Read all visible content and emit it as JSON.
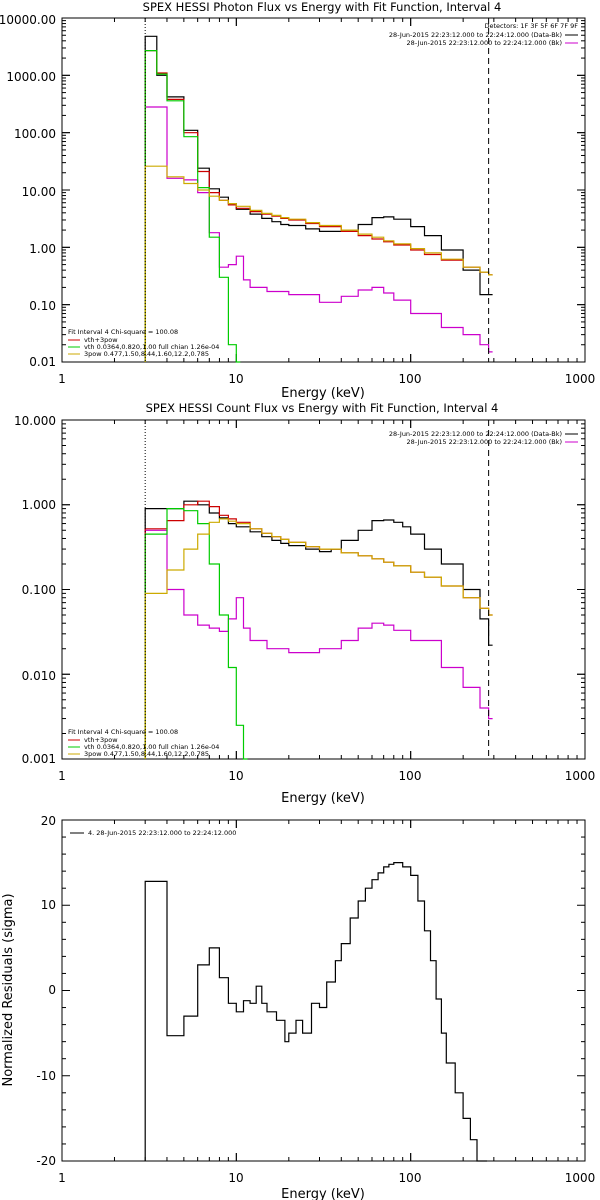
{
  "chart_data": [
    {
      "type": "line",
      "title": "SPEX HESSI Photon Flux vs Energy with Fit Function, Interval 4",
      "xlabel": "Energy (keV)",
      "ylabel": "",
      "xscale": "log",
      "yscale": "log",
      "xlim": [
        1,
        1000
      ],
      "ylim": [
        0.01,
        10000
      ],
      "xticks": [
        "1",
        "10",
        "100",
        "1000"
      ],
      "yticks": [
        "0.01",
        "0.10",
        "1.00",
        "10.00",
        "100.00",
        "1000.00",
        "10000.00"
      ],
      "legend_top": [
        "Detectors: 1F 3F 5F 6F 7F 9F",
        "28-Jun-2015 22:23:12.000 to 22:24:12.000 (Data-Bk)",
        "28-Jun-2015 22:23:12.000 to 22:24:12.000 (Bk)"
      ],
      "legend_bottom_title": "Fit Interval 4   Chi-square = 100.08",
      "legend_bottom": [
        "vth+3pow",
        "vth 0.0364,0.820,1.00  full chian 1.26e-04",
        "3pow 0.477,1.50,8.44,1.60,12.2,0.785"
      ],
      "vlines": [
        3,
        280
      ],
      "series": [
        {
          "name": "28-Jun-2015 22:23:12.000 to 22:24:12.000 (Data-Bk)",
          "color": "#000000",
          "x": [
            3,
            3.5,
            4,
            5,
            6,
            7,
            8,
            9,
            10,
            12,
            14,
            16,
            18,
            20,
            25,
            30,
            40,
            50,
            60,
            70,
            80,
            100,
            120,
            150,
            200,
            250,
            280
          ],
          "y": [
            4800,
            1000,
            420,
            110,
            24,
            10.5,
            7.5,
            5.8,
            4.6,
            3.8,
            3.2,
            2.8,
            2.5,
            2.4,
            2.1,
            1.9,
            1.9,
            2.5,
            3.3,
            3.4,
            3.1,
            2.3,
            1.6,
            0.9,
            0.4,
            0.15,
            0.15
          ]
        },
        {
          "name": "28-Jun-2015 22:23:12.000 to 22:24:12.000 (Bk)",
          "color": "#cc00cc",
          "x": [
            3,
            4,
            5,
            6,
            7,
            8,
            9,
            10,
            11,
            12,
            15,
            20,
            30,
            40,
            50,
            60,
            70,
            80,
            100,
            150,
            200,
            250,
            280
          ],
          "y": [
            280,
            16,
            15,
            9,
            1.8,
            0.45,
            0.5,
            0.7,
            0.27,
            0.2,
            0.17,
            0.15,
            0.11,
            0.14,
            0.18,
            0.2,
            0.16,
            0.12,
            0.07,
            0.04,
            0.03,
            0.02,
            0.015
          ]
        },
        {
          "name": "vth+3pow",
          "color": "#cc0000",
          "x": [
            3,
            3.5,
            4,
            5,
            6,
            7,
            8,
            9,
            10,
            12,
            14,
            16,
            18,
            20,
            25,
            30,
            40,
            50,
            60,
            70,
            80,
            100,
            120,
            150,
            200,
            250,
            280
          ],
          "y": [
            2700,
            1100,
            380,
            100,
            21,
            9,
            6.6,
            5.5,
            4.8,
            4.2,
            3.8,
            3.5,
            3.2,
            3.0,
            2.6,
            2.3,
            1.9,
            1.6,
            1.4,
            1.25,
            1.1,
            0.9,
            0.75,
            0.6,
            0.45,
            0.37,
            0.33
          ]
        },
        {
          "name": "vth 0.0364,0.820,1.00  full chian 1.26e-04",
          "color": "#00cc00",
          "x": [
            3,
            3.5,
            4,
            5,
            6,
            7,
            8,
            9,
            10
          ],
          "y": [
            2700,
            1050,
            360,
            85,
            11,
            1.5,
            0.3,
            0.02,
            0.01
          ]
        },
        {
          "name": "3pow 0.477,1.50,8.44,1.60,12.2,0.785",
          "color": "#ccaa00",
          "x": [
            3,
            4,
            5,
            6,
            7,
            8,
            9,
            10,
            12,
            14,
            16,
            18,
            20,
            25,
            30,
            40,
            50,
            60,
            70,
            80,
            100,
            120,
            150,
            200,
            250,
            280
          ],
          "y": [
            26,
            17,
            13,
            10,
            7.8,
            6.6,
            5.8,
            5.2,
            4.4,
            3.9,
            3.6,
            3.3,
            3.1,
            2.7,
            2.4,
            2.0,
            1.7,
            1.5,
            1.3,
            1.15,
            0.95,
            0.8,
            0.62,
            0.45,
            0.37,
            0.33
          ]
        }
      ]
    },
    {
      "type": "line",
      "title": "SPEX HESSI Count Flux vs Energy with Fit Function, Interval 4",
      "xlabel": "Energy (keV)",
      "ylabel": "",
      "xscale": "log",
      "yscale": "log",
      "xlim": [
        1,
        1000
      ],
      "ylim": [
        0.001,
        10
      ],
      "xticks": [
        "1",
        "10",
        "100",
        "1000"
      ],
      "yticks": [
        "0.001",
        "0.010",
        "0.100",
        "1.000",
        "10.000"
      ],
      "legend_top": [
        "28-Jun-2015 22:23:12.000 to 22:24:12.000 (Data-Bk)",
        "28-Jun-2015 22:23:12.000 to 22:24:12.000 (Bk)"
      ],
      "legend_bottom_title": "Fit Interval 4   Chi-square = 100.08",
      "legend_bottom": [
        "vth+3pow",
        "vth 0.0364,0.820,1.00  full chian 1.26e-04",
        "3pow 0.477,1.50,8.44,1.60,12.2,0.785"
      ],
      "vlines": [
        3,
        280
      ],
      "series": [
        {
          "name": "28-Jun-2015 22:23:12.000 to 22:24:12.000 (Data-Bk)",
          "color": "#000000",
          "x": [
            3,
            4,
            5,
            6,
            7,
            8,
            9,
            10,
            12,
            14,
            16,
            18,
            20,
            25,
            30,
            35,
            40,
            50,
            60,
            70,
            80,
            90,
            100,
            120,
            150,
            200,
            250,
            280
          ],
          "y": [
            0.9,
            0.9,
            1.1,
            1.0,
            0.8,
            0.7,
            0.6,
            0.55,
            0.48,
            0.42,
            0.38,
            0.35,
            0.33,
            0.3,
            0.28,
            0.3,
            0.38,
            0.5,
            0.65,
            0.66,
            0.62,
            0.55,
            0.45,
            0.3,
            0.2,
            0.1,
            0.045,
            0.022
          ]
        },
        {
          "name": "28-Jun-2015 22:23:12.000 to 22:24:12.000 (Bk)",
          "color": "#cc00cc",
          "x": [
            3,
            4,
            5,
            6,
            7,
            8,
            9,
            10,
            11,
            12,
            15,
            20,
            25,
            30,
            40,
            50,
            60,
            70,
            80,
            100,
            150,
            200,
            250,
            280
          ],
          "y": [
            0.5,
            0.1,
            0.05,
            0.038,
            0.035,
            0.032,
            0.045,
            0.08,
            0.035,
            0.025,
            0.02,
            0.018,
            0.018,
            0.02,
            0.025,
            0.035,
            0.04,
            0.038,
            0.033,
            0.025,
            0.012,
            0.007,
            0.004,
            0.003
          ]
        },
        {
          "name": "vth+3pow",
          "color": "#cc0000",
          "x": [
            3,
            4,
            5,
            6,
            7,
            8,
            9,
            10,
            12,
            14,
            16,
            18,
            20,
            25,
            30,
            40,
            50,
            60,
            70,
            80,
            100,
            120,
            150,
            200,
            250,
            280
          ],
          "y": [
            0.52,
            0.65,
            1.0,
            1.1,
            0.95,
            0.75,
            0.68,
            0.62,
            0.52,
            0.46,
            0.42,
            0.39,
            0.36,
            0.32,
            0.3,
            0.27,
            0.25,
            0.23,
            0.21,
            0.19,
            0.16,
            0.14,
            0.11,
            0.08,
            0.06,
            0.05
          ]
        },
        {
          "name": "vth 0.0364,0.820,1.00  full chian 1.26e-04",
          "color": "#00cc00",
          "x": [
            3,
            4,
            5,
            6,
            7,
            8,
            9,
            10,
            11
          ],
          "y": [
            0.45,
            0.9,
            0.85,
            0.6,
            0.2,
            0.05,
            0.012,
            0.0025,
            0.001
          ]
        },
        {
          "name": "3pow 0.477,1.50,8.44,1.60,12.2,0.785",
          "color": "#ccaa00",
          "x": [
            3,
            4,
            5,
            6,
            7,
            8,
            9,
            10,
            12,
            14,
            16,
            18,
            20,
            25,
            30,
            40,
            50,
            60,
            70,
            80,
            100,
            120,
            150,
            200,
            250,
            280
          ],
          "y": [
            0.09,
            0.17,
            0.3,
            0.45,
            0.62,
            0.68,
            0.64,
            0.6,
            0.52,
            0.46,
            0.42,
            0.39,
            0.36,
            0.32,
            0.3,
            0.27,
            0.25,
            0.23,
            0.21,
            0.19,
            0.16,
            0.14,
            0.11,
            0.08,
            0.06,
            0.05
          ]
        }
      ]
    },
    {
      "type": "line",
      "title": "",
      "xlabel": "Energy (keV)",
      "ylabel": "Normalized Residuals (sigma)",
      "xscale": "log",
      "yscale": "linear",
      "xlim": [
        1,
        1000
      ],
      "ylim": [
        -20,
        20
      ],
      "xticks": [
        "1",
        "10",
        "100",
        "1000"
      ],
      "yticks": [
        "-20",
        "-10",
        "0",
        "10",
        "20"
      ],
      "legend_top": [
        "4. 28-Jun-2015 22:23:12.000 to 22:24:12.000"
      ],
      "series": [
        {
          "name": "4. 28-Jun-2015 22:23:12.000 to 22:24:12.000",
          "color": "#000000",
          "x": [
            3,
            4,
            5,
            6,
            7,
            8,
            9,
            10,
            11,
            12,
            13,
            14,
            15,
            17,
            19,
            20,
            22,
            24,
            27,
            30,
            33,
            37,
            40,
            45,
            50,
            55,
            60,
            65,
            70,
            75,
            80,
            90,
            100,
            110,
            120,
            130,
            140,
            150,
            160,
            180,
            200,
            220,
            240,
            260
          ],
          "y": [
            12.8,
            -5.3,
            -3.0,
            3.0,
            5.0,
            1.5,
            -1.5,
            -2.5,
            -1.2,
            -1.5,
            0.5,
            -1.5,
            -2.5,
            -3.5,
            -6.0,
            -5.0,
            -3.5,
            -5.0,
            -1.5,
            -2.0,
            1.0,
            3.5,
            5.5,
            8.5,
            10.5,
            12.0,
            13.0,
            13.8,
            14.5,
            14.8,
            15.0,
            14.5,
            13.5,
            10.5,
            7.0,
            3.5,
            -1.0,
            -5.0,
            -8.5,
            -12.0,
            -15.0,
            -17.5,
            -20.0,
            -20.0
          ]
        }
      ]
    }
  ]
}
